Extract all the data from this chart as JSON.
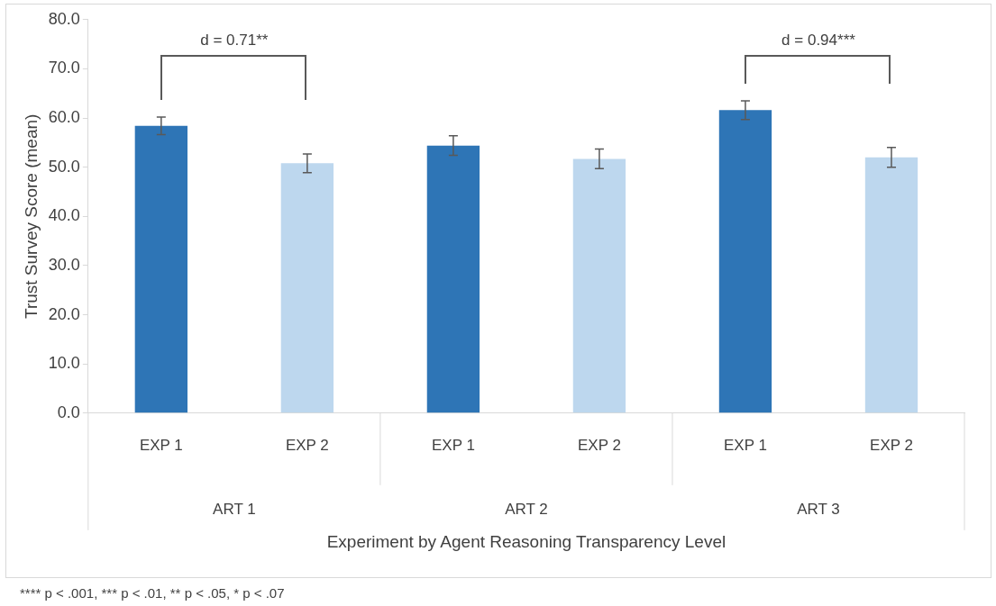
{
  "chart_data": {
    "type": "bar",
    "xlabel": "Experiment by Agent Reasoning Transparency Level",
    "ylabel": "Trust Survey Score (mean)",
    "categories": [
      "EXP 1",
      "EXP 2",
      "EXP 1",
      "EXP 2",
      "EXP 1",
      "EXP 2"
    ],
    "values": [
      58.4,
      50.8,
      54.4,
      51.7,
      61.6,
      52.0
    ],
    "errors": [
      1.8,
      1.9,
      2.0,
      2.0,
      1.9,
      2.0
    ],
    "colors": [
      "#2e75b6",
      "#bdd7ee",
      "#2e75b6",
      "#bdd7ee",
      "#2e75b6",
      "#bdd7ee"
    ],
    "ylim": [
      0,
      80
    ],
    "yticks": [
      {
        "value": 0,
        "label": "0.0"
      },
      {
        "value": 10,
        "label": "10.0"
      },
      {
        "value": 20,
        "label": "20.0"
      },
      {
        "value": 30,
        "label": "30.0"
      },
      {
        "value": 40,
        "label": "40.0"
      },
      {
        "value": 50,
        "label": "50.0"
      },
      {
        "value": 60,
        "label": "60.0"
      },
      {
        "value": 70,
        "label": "70.0"
      },
      {
        "value": 80,
        "label": "80.0"
      }
    ],
    "grid": false,
    "legend": false,
    "annotations": [
      "ART 1",
      "ART 2",
      "ART 3",
      "d = 0.71**",
      "d = 0.94***",
      "**** p < .001, *** p < .01, ** p < .05, * p < .07"
    ]
  }
}
